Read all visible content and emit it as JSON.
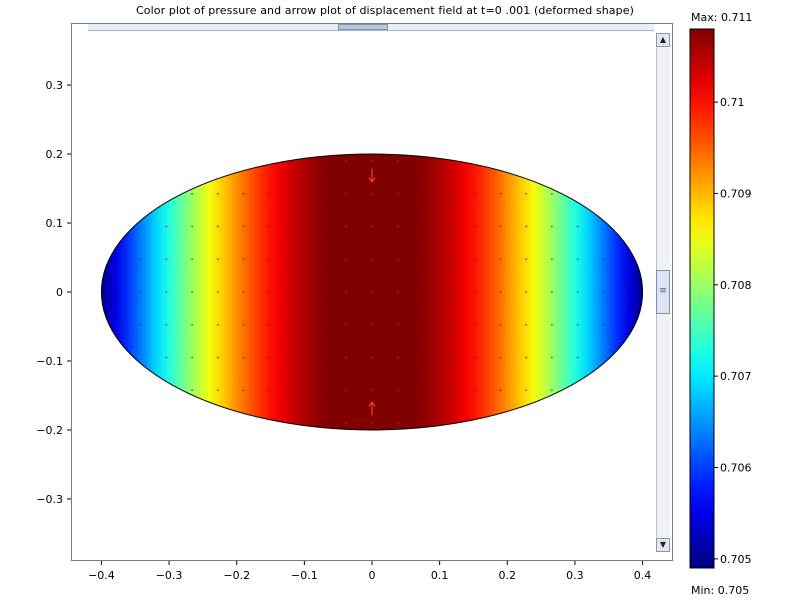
{
  "chart_data": {
    "type": "heatmap",
    "title": "Color plot of pressure and arrow plot of displacement field at t=0 .001 (deformed shape)",
    "x_ticks": [
      "−0.4",
      "−0.3",
      "−0.2",
      "−0.1",
      "0",
      "0.1",
      "0.2",
      "0.3",
      "0.4"
    ],
    "x_tick_values": [
      -0.4,
      -0.3,
      -0.2,
      -0.1,
      0,
      0.1,
      0.2,
      0.3,
      0.4
    ],
    "y_ticks": [
      "0.3",
      "0.2",
      "0.1",
      "0",
      "−0.1",
      "−0.2",
      "−0.3"
    ],
    "y_tick_values": [
      0.3,
      0.2,
      0.1,
      0,
      -0.1,
      -0.2,
      -0.3
    ],
    "xlim": [
      -0.445,
      0.445
    ],
    "ylim": [
      -0.39,
      0.39
    ],
    "domain": {
      "shape": "ellipse",
      "center": [
        0,
        0
      ],
      "semi_axis_x": 0.4,
      "semi_axis_y": 0.2
    },
    "field": {
      "max_at_x": 0,
      "min_at_x": [
        -0.4,
        0.4
      ],
      "profile": "cosine"
    },
    "colorbar": {
      "max_label": "Max: 0.711",
      "min_label": "Min: 0.705",
      "min": 0.705,
      "max": 0.711,
      "ticks": [
        "0.71",
        "0.709",
        "0.708",
        "0.707",
        "0.706",
        "0.705"
      ],
      "tick_values": [
        0.71,
        0.709,
        0.708,
        0.707,
        0.706,
        0.705
      ],
      "colormap": "jet",
      "top": 0.7108,
      "bottom": 0.7049
    }
  }
}
